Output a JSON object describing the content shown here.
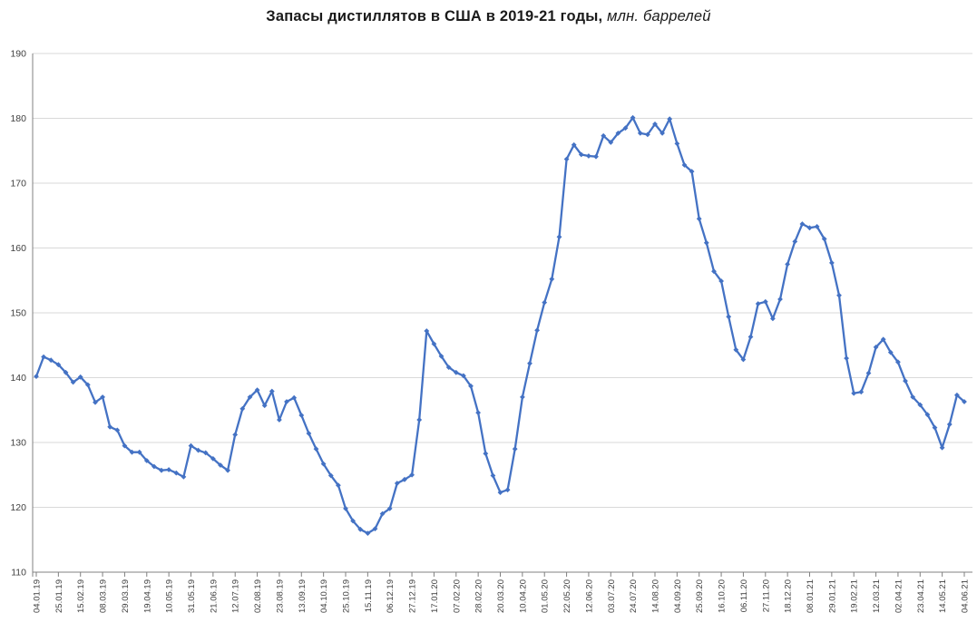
{
  "title": {
    "main": "Запасы дистиллятов в США в 2019-21 годы,",
    "unit": "млн. баррелей"
  },
  "colors": {
    "line": "#4472C4",
    "grid": "#D9D9D9",
    "axis": "#808080",
    "label": "#404040"
  },
  "chart_data": {
    "type": "line",
    "series_name": "Запасы дистиллятов в США, млн. баррелей",
    "marker": "diamond",
    "grid": true,
    "legend_position": "none",
    "ylim": [
      110,
      190
    ],
    "y_ticks": [
      110,
      120,
      130,
      140,
      150,
      160,
      170,
      180,
      190
    ],
    "x_tick_labels": [
      "04.01.19",
      "25.01.19",
      "15.02.19",
      "08.03.19",
      "29.03.19",
      "19.04.19",
      "10.05.19",
      "31.05.19",
      "21.06.19",
      "12.07.19",
      "02.08.19",
      "23.08.19",
      "13.09.19",
      "04.10.19",
      "25.10.19",
      "15.11.19",
      "06.12.19",
      "27.12.19",
      "17.01.20",
      "07.02.20",
      "28.02.20",
      "20.03.20",
      "10.04.20",
      "01.05.20",
      "22.05.20",
      "12.06.20",
      "03.07.20",
      "24.07.20",
      "14.08.20",
      "04.09.20",
      "25.09.20",
      "16.10.20",
      "06.11.20",
      "27.11.20",
      "18.12.20",
      "08.01.21",
      "29.01.21",
      "19.02.21",
      "12.03.21",
      "02.04.21",
      "23.04.21",
      "14.05.21",
      "04.06.21"
    ],
    "x_tick_every": 3,
    "x": [
      "04.01.19",
      "11.01.19",
      "18.01.19",
      "25.01.19",
      "01.02.19",
      "08.02.19",
      "15.02.19",
      "22.02.19",
      "01.03.19",
      "08.03.19",
      "15.03.19",
      "22.03.19",
      "29.03.19",
      "05.04.19",
      "12.04.19",
      "19.04.19",
      "26.04.19",
      "03.05.19",
      "10.05.19",
      "17.05.19",
      "24.05.19",
      "31.05.19",
      "07.06.19",
      "14.06.19",
      "21.06.19",
      "28.06.19",
      "05.07.19",
      "12.07.19",
      "19.07.19",
      "26.07.19",
      "02.08.19",
      "09.08.19",
      "16.08.19",
      "23.08.19",
      "30.08.19",
      "06.09.19",
      "13.09.19",
      "20.09.19",
      "27.09.19",
      "04.10.19",
      "11.10.19",
      "18.10.19",
      "25.10.19",
      "01.11.19",
      "08.11.19",
      "15.11.19",
      "22.11.19",
      "29.11.19",
      "06.12.19",
      "13.12.19",
      "20.12.19",
      "27.12.19",
      "03.01.20",
      "10.01.20",
      "17.01.20",
      "24.01.20",
      "31.01.20",
      "07.02.20",
      "14.02.20",
      "21.02.20",
      "28.02.20",
      "06.03.20",
      "13.03.20",
      "20.03.20",
      "27.03.20",
      "03.04.20",
      "10.04.20",
      "17.04.20",
      "24.04.20",
      "01.05.20",
      "08.05.20",
      "15.05.20",
      "22.05.20",
      "29.05.20",
      "05.06.20",
      "12.06.20",
      "19.06.20",
      "26.06.20",
      "03.07.20",
      "10.07.20",
      "17.07.20",
      "24.07.20",
      "31.07.20",
      "07.08.20",
      "14.08.20",
      "21.08.20",
      "28.08.20",
      "04.09.20",
      "11.09.20",
      "18.09.20",
      "25.09.20",
      "02.10.20",
      "09.10.20",
      "16.10.20",
      "23.10.20",
      "30.10.20",
      "06.11.20",
      "13.11.20",
      "20.11.20",
      "27.11.20",
      "04.12.20",
      "11.12.20",
      "18.12.20",
      "25.12.20",
      "01.01.21",
      "08.01.21",
      "15.01.21",
      "22.01.21",
      "29.01.21",
      "05.02.21",
      "12.02.21",
      "19.02.21",
      "26.02.21",
      "05.03.21",
      "12.03.21",
      "19.03.21",
      "26.03.21",
      "02.04.21",
      "09.04.21",
      "16.04.21",
      "23.04.21",
      "30.04.21",
      "07.05.21",
      "14.05.21",
      "21.05.21",
      "28.05.21",
      "04.06.21"
    ],
    "values": [
      140.2,
      143.2,
      142.7,
      142.0,
      140.8,
      139.3,
      140.1,
      138.9,
      136.2,
      137.0,
      132.4,
      131.9,
      129.5,
      128.5,
      128.5,
      127.2,
      126.3,
      125.7,
      125.8,
      125.3,
      124.7,
      129.5,
      128.8,
      128.4,
      127.5,
      126.5,
      125.7,
      131.2,
      135.2,
      137.0,
      138.1,
      135.7,
      137.9,
      133.5,
      136.3,
      136.9,
      134.2,
      131.4,
      129.0,
      126.7,
      124.9,
      123.4,
      119.8,
      117.9,
      116.6,
      116.0,
      116.7,
      119.0,
      119.8,
      123.7,
      124.3,
      125.0,
      133.5,
      147.2,
      145.2,
      143.3,
      141.6,
      140.8,
      140.3,
      138.7,
      134.6,
      128.3,
      124.9,
      122.3,
      122.7,
      129.0,
      137.0,
      142.2,
      147.3,
      151.6,
      155.2,
      161.7,
      173.7,
      175.9,
      174.4,
      174.2,
      174.1,
      177.3,
      176.3,
      177.7,
      178.5,
      180.1,
      177.7,
      177.5,
      179.1,
      177.7,
      179.9,
      176.1,
      172.8,
      171.8,
      164.5,
      160.8,
      156.4,
      154.9,
      149.4,
      144.3,
      142.8,
      146.3,
      151.4,
      151.7,
      149.1,
      152.1,
      157.5,
      161.0,
      163.7,
      163.1,
      163.3,
      161.4,
      157.7,
      152.7,
      143.0,
      137.6,
      137.8,
      140.7,
      144.7,
      145.9,
      143.9,
      142.4,
      139.5,
      137.0,
      135.8,
      134.3,
      132.3,
      129.2,
      132.8,
      137.3,
      136.3
    ]
  }
}
